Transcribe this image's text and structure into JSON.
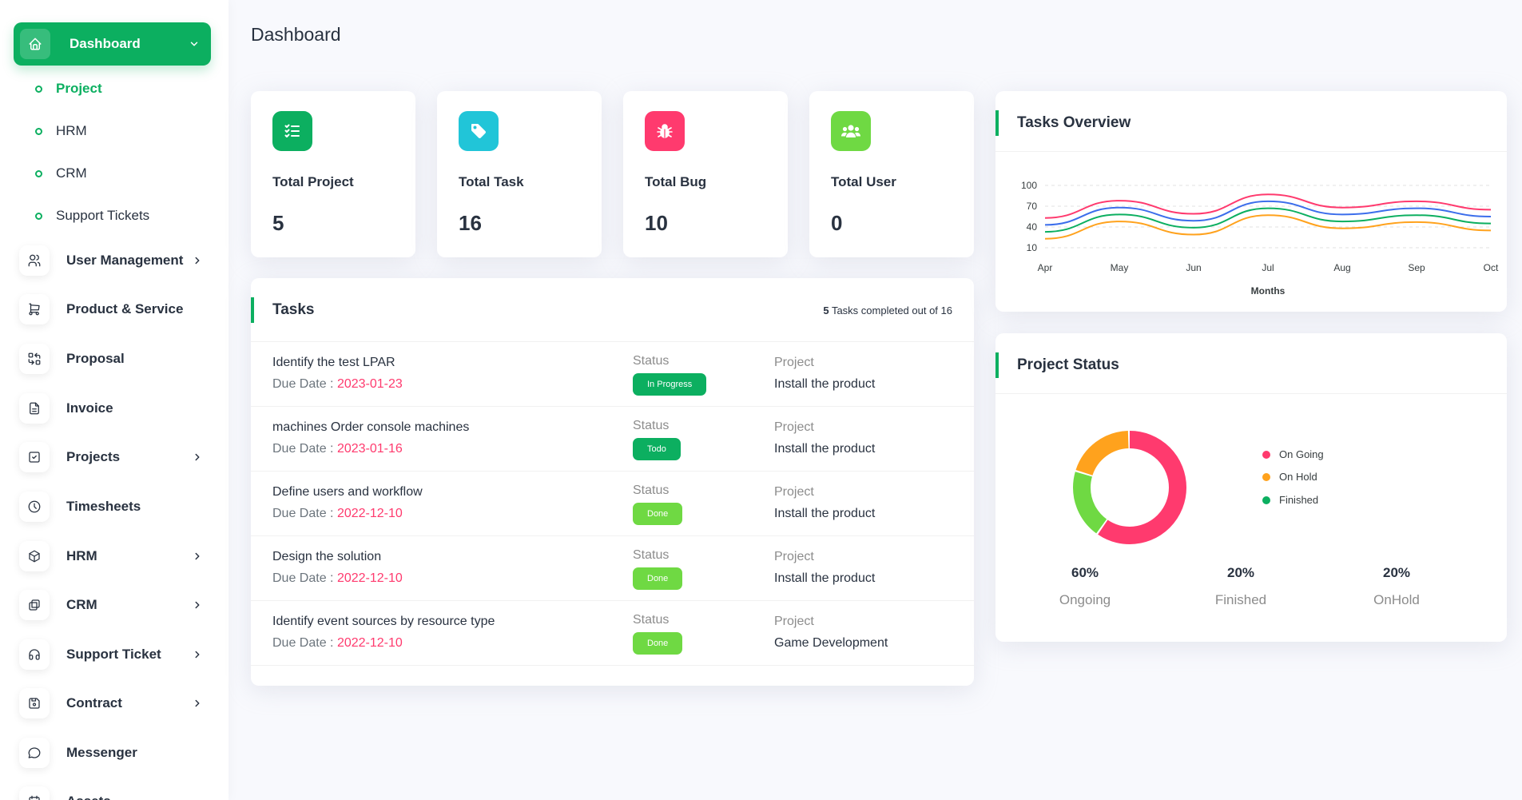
{
  "sidebar": {
    "active": {
      "label": "Dashboard",
      "icon": "home-icon"
    },
    "sub_items": [
      {
        "label": "Project",
        "active": true
      },
      {
        "label": "HRM",
        "active": false
      },
      {
        "label": "CRM",
        "active": false
      },
      {
        "label": "Support Tickets",
        "active": false
      }
    ],
    "items": [
      {
        "label": "User Management",
        "icon": "users-icon",
        "has_submenu": true
      },
      {
        "label": "Product & Service",
        "icon": "cart-icon",
        "has_submenu": false
      },
      {
        "label": "Proposal",
        "icon": "replace-icon",
        "has_submenu": false
      },
      {
        "label": "Invoice",
        "icon": "file-invoice-icon",
        "has_submenu": false
      },
      {
        "label": "Projects",
        "icon": "square-check-icon",
        "has_submenu": true
      },
      {
        "label": "Timesheets",
        "icon": "clock-icon",
        "has_submenu": false
      },
      {
        "label": "HRM",
        "icon": "3d-cube-icon",
        "has_submenu": true
      },
      {
        "label": "CRM",
        "icon": "layers-difference-icon",
        "has_submenu": true
      },
      {
        "label": "Support Ticket",
        "icon": "headphones-icon",
        "has_submenu": true
      },
      {
        "label": "Contract",
        "icon": "device-floppy-icon",
        "has_submenu": true
      },
      {
        "label": "Messenger",
        "icon": "message-icon",
        "has_submenu": false
      },
      {
        "label": "Assets",
        "icon": "calendar-icon",
        "has_submenu": false
      }
    ]
  },
  "header": {
    "title": "Dashboard"
  },
  "stats": [
    {
      "title": "Total Project",
      "value": "5",
      "color": "#0caf60",
      "icon": "list-check-icon"
    },
    {
      "title": "Total Task",
      "value": "16",
      "color": "#21c5d8",
      "icon": "tag-icon"
    },
    {
      "title": "Total Bug",
      "value": "10",
      "color": "#ff3a6e",
      "icon": "bug-icon"
    },
    {
      "title": "Total User",
      "value": "0",
      "color": "#6fd943",
      "icon": "users-group-icon"
    }
  ],
  "tasks": {
    "title": "Tasks",
    "completed": "5",
    "summary_text": " Tasks completed out of 16",
    "status_label": "Status",
    "project_label": "Project",
    "due_label": "Due Date : ",
    "rows": [
      {
        "name": "Identify the test LPAR",
        "due": "2023-01-23",
        "status": "In Progress",
        "status_color": "#0caf60",
        "project": "Install the product"
      },
      {
        "name": "machines Order console machines",
        "due": "2023-01-16",
        "status": "Todo",
        "status_color": "#0caf60",
        "project": "Install the product"
      },
      {
        "name": "Define users and workflow",
        "due": "2022-12-10",
        "status": "Done",
        "status_color": "#6fd943",
        "project": "Install the product"
      },
      {
        "name": "Design the solution",
        "due": "2022-12-10",
        "status": "Done",
        "status_color": "#6fd943",
        "project": "Install the product"
      },
      {
        "name": "Identify event sources by resource type",
        "due": "2022-12-10",
        "status": "Done",
        "status_color": "#6fd943",
        "project": "Game Development"
      }
    ]
  },
  "tasks_overview": {
    "title": "Tasks Overview",
    "chart_data": {
      "type": "line",
      "x": [
        "Apr",
        "May",
        "Jun",
        "Jul",
        "Aug",
        "Sep",
        "Oct"
      ],
      "xlabel": "Months",
      "ylabel": "",
      "yticks": [
        10,
        40,
        70,
        100
      ],
      "ylim": [
        10,
        100
      ],
      "grid": true,
      "series": [
        {
          "color": "#ff3a6e",
          "values": [
            53,
            78,
            59,
            87,
            68,
            77,
            65
          ]
        },
        {
          "color": "#3c6eeb",
          "values": [
            43,
            68,
            49,
            77,
            58,
            67,
            55
          ]
        },
        {
          "color": "#0caf60",
          "values": [
            33,
            58,
            39,
            67,
            48,
            57,
            45
          ]
        },
        {
          "color": "#ffa21d",
          "values": [
            23,
            48,
            29,
            57,
            38,
            47,
            35
          ]
        }
      ]
    }
  },
  "project_status": {
    "title": "Project Status",
    "chart_data": {
      "type": "pie",
      "donut": true,
      "legend_position": "right",
      "slices": [
        {
          "label": "On Going",
          "value": 60,
          "color": "#ff3a6e"
        },
        {
          "label": "On Hold",
          "value": 20,
          "color": "#ffa21d"
        },
        {
          "label": "Finished",
          "value": 20,
          "color": "#0caf60"
        }
      ],
      "render_order": [
        {
          "value": 60,
          "color": "#ff3a6e"
        },
        {
          "value": 20,
          "color": "#6fd943"
        },
        {
          "value": 20,
          "color": "#ffa21d"
        }
      ]
    },
    "summary": [
      {
        "value": "60%",
        "label": "Ongoing"
      },
      {
        "value": "20%",
        "label": "Finished"
      },
      {
        "value": "20%",
        "label": "OnHold"
      }
    ]
  }
}
